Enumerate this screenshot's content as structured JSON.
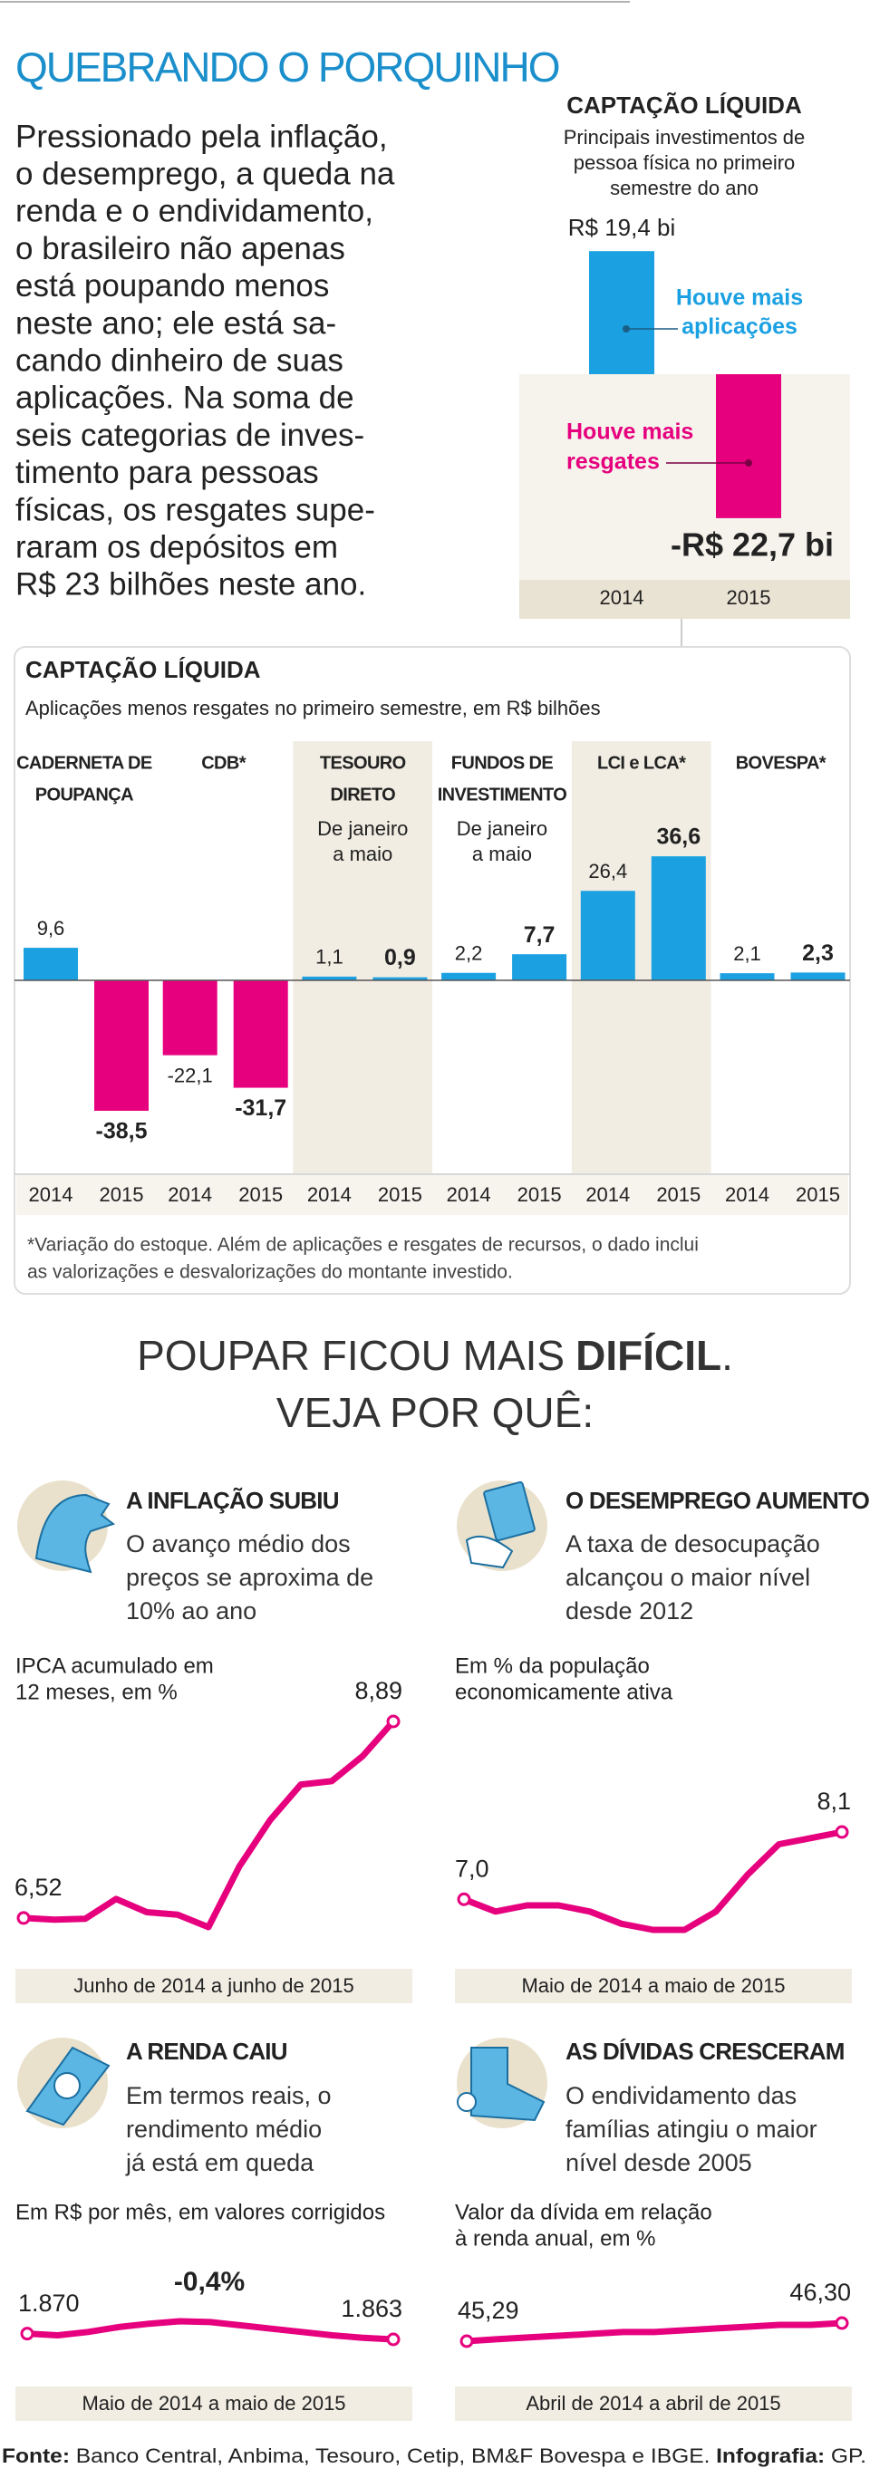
{
  "header": {
    "title": "QUEBRANDO O PORQUINHO",
    "intro": [
      "Pressionado pela inflação,",
      "o desemprego, a queda na",
      "renda e o endividamento,",
      "o brasileiro não apenas",
      "está poupando menos",
      "neste ano; ele está sa-",
      "cando dinheiro de suas",
      "aplicações. Na soma de",
      "seis categorias de inves-",
      "timento para pessoas",
      "físicas, os resgates supe-",
      "raram os depósitos em",
      "R$ 23 bilhões neste ano."
    ]
  },
  "chart_data": [
    {
      "type": "bar",
      "title": "CAPTAÇÃO LÍQUIDA",
      "subtitle": [
        "Principais investimentos de",
        "pessoa física no primeiro",
        "semestre do ano"
      ],
      "categories": [
        "2014",
        "2015"
      ],
      "values": [
        19.4,
        -22.7
      ],
      "value_labels": [
        "R$ 19,4 bi",
        "-R$ 22,7 bi"
      ],
      "colors": [
        "#1ba1e2",
        "#e6007e"
      ],
      "annotations": [
        [
          "Houve mais",
          "aplicações"
        ],
        [
          "Houve mais",
          "resgates"
        ]
      ]
    },
    {
      "type": "grouped-bar",
      "title": "CAPTAÇÃO LÍQUIDA",
      "subtitle": "Aplicações menos resgates no primeiro semestre, em R$ bilhões",
      "categories": [
        [
          "CADERNETA DE",
          "POUPANÇA"
        ],
        [
          "CDB*"
        ],
        [
          "TESOURO",
          "DIRETO"
        ],
        [
          "FUNDOS DE",
          "INVESTIMENTO"
        ],
        [
          "LCI e LCA*"
        ],
        [
          "BOVESPA*"
        ]
      ],
      "category_notes": [
        null,
        null,
        [
          "De janeiro",
          "a maio"
        ],
        [
          "De janeiro",
          "a maio"
        ],
        null,
        null
      ],
      "series": [
        {
          "name": "2014",
          "values": [
            9.6,
            -22.1,
            1.1,
            2.2,
            26.4,
            2.1
          ],
          "value_labels": [
            "9,6",
            "-22,1",
            "1,1",
            "2,2",
            "26,4",
            "2,1"
          ]
        },
        {
          "name": "2015",
          "values": [
            -38.5,
            -31.7,
            0.9,
            7.7,
            36.6,
            2.3
          ],
          "value_labels": [
            "-38,5",
            "-31,7",
            "0,9",
            "7,7",
            "36,6",
            "2,3"
          ]
        }
      ],
      "positive_color": "#1ba1e2",
      "negative_color": "#e6007e",
      "footnote": [
        "*Variação do estoque. Além de aplicações e resgates de recursos, o dado inclui",
        "as valorizações e desvalorizações do montante investido."
      ]
    },
    {
      "type": "line",
      "title": "A INFLAÇÃO SUBIU",
      "description": [
        "O avanço médio dos",
        "preços se aproxima de",
        "10% ao ano"
      ],
      "y_label": [
        "IPCA acumulado em",
        "12 meses, em %"
      ],
      "period": "Junho de 2014 a junho de 2015",
      "color": "#e6007e",
      "values": [
        6.52,
        6.5,
        6.51,
        6.75,
        6.59,
        6.56,
        6.41,
        7.14,
        7.7,
        8.13,
        8.17,
        8.47,
        8.89
      ],
      "value_labels": [
        "6,52",
        null,
        null,
        null,
        null,
        null,
        null,
        null,
        null,
        null,
        null,
        null,
        "8,89"
      ]
    },
    {
      "type": "line",
      "title": "O DESEMPREGO AUMENTOU",
      "description": [
        "A taxa de desocupação",
        "alcançou o maior nível",
        "desde 2012"
      ],
      "y_label": [
        "Em % da população",
        "economicamente ativa"
      ],
      "period": "Maio de 2014 a maio de 2015",
      "color": "#e6007e",
      "values": [
        7.0,
        6.8,
        6.9,
        6.9,
        6.8,
        6.6,
        6.5,
        6.5,
        6.8,
        7.4,
        7.9,
        8.0,
        8.1
      ],
      "value_labels": [
        "7,0",
        null,
        null,
        null,
        null,
        null,
        null,
        null,
        null,
        null,
        null,
        null,
        "8,1"
      ]
    },
    {
      "type": "line",
      "title": "A RENDA CAIU",
      "description": [
        "Em termos reais, o",
        "rendimento médio",
        "já está em queda"
      ],
      "y_label": [
        "Em R$ por mês, em valores corrigidos"
      ],
      "period": "Maio de 2014 a maio de 2015",
      "color": "#e6007e",
      "annotation": "-0,4%",
      "values": [
        1870,
        1868,
        1872,
        1878,
        1882,
        1885,
        1884,
        1880,
        1876,
        1872,
        1868,
        1865,
        1863
      ],
      "value_labels": [
        "1.870",
        null,
        null,
        null,
        null,
        null,
        null,
        null,
        null,
        null,
        null,
        null,
        "1.863"
      ]
    },
    {
      "type": "line",
      "title": "AS DÍVIDAS CRESCERAM",
      "description": [
        "O endividamento das",
        "famílias atingiu o maior",
        "nível desde 2005"
      ],
      "y_label": [
        "Valor da dívida em relação",
        "à renda anual, em %"
      ],
      "period": "Abril de 2014 a abril de 2015",
      "color": "#e6007e",
      "values": [
        45.29,
        45.4,
        45.5,
        45.6,
        45.7,
        45.8,
        45.8,
        45.9,
        46.0,
        46.1,
        46.2,
        46.2,
        46.3
      ],
      "value_labels": [
        "45,29",
        null,
        null,
        null,
        null,
        null,
        null,
        null,
        null,
        null,
        null,
        null,
        "46,30"
      ]
    }
  ],
  "section": {
    "headline": [
      "POUPAR FICOU MAIS",
      "DIFÍCIL",
      "."
    ],
    "subheadline": "VEJA POR QUÊ:"
  },
  "footer": {
    "source_label": "Fonte:",
    "sources": "Banco Central, Anbima, Tesouro, Cetip, BM&F Bovespa e IBGE.",
    "credit_label": "Infografia:",
    "credit": "GP."
  }
}
